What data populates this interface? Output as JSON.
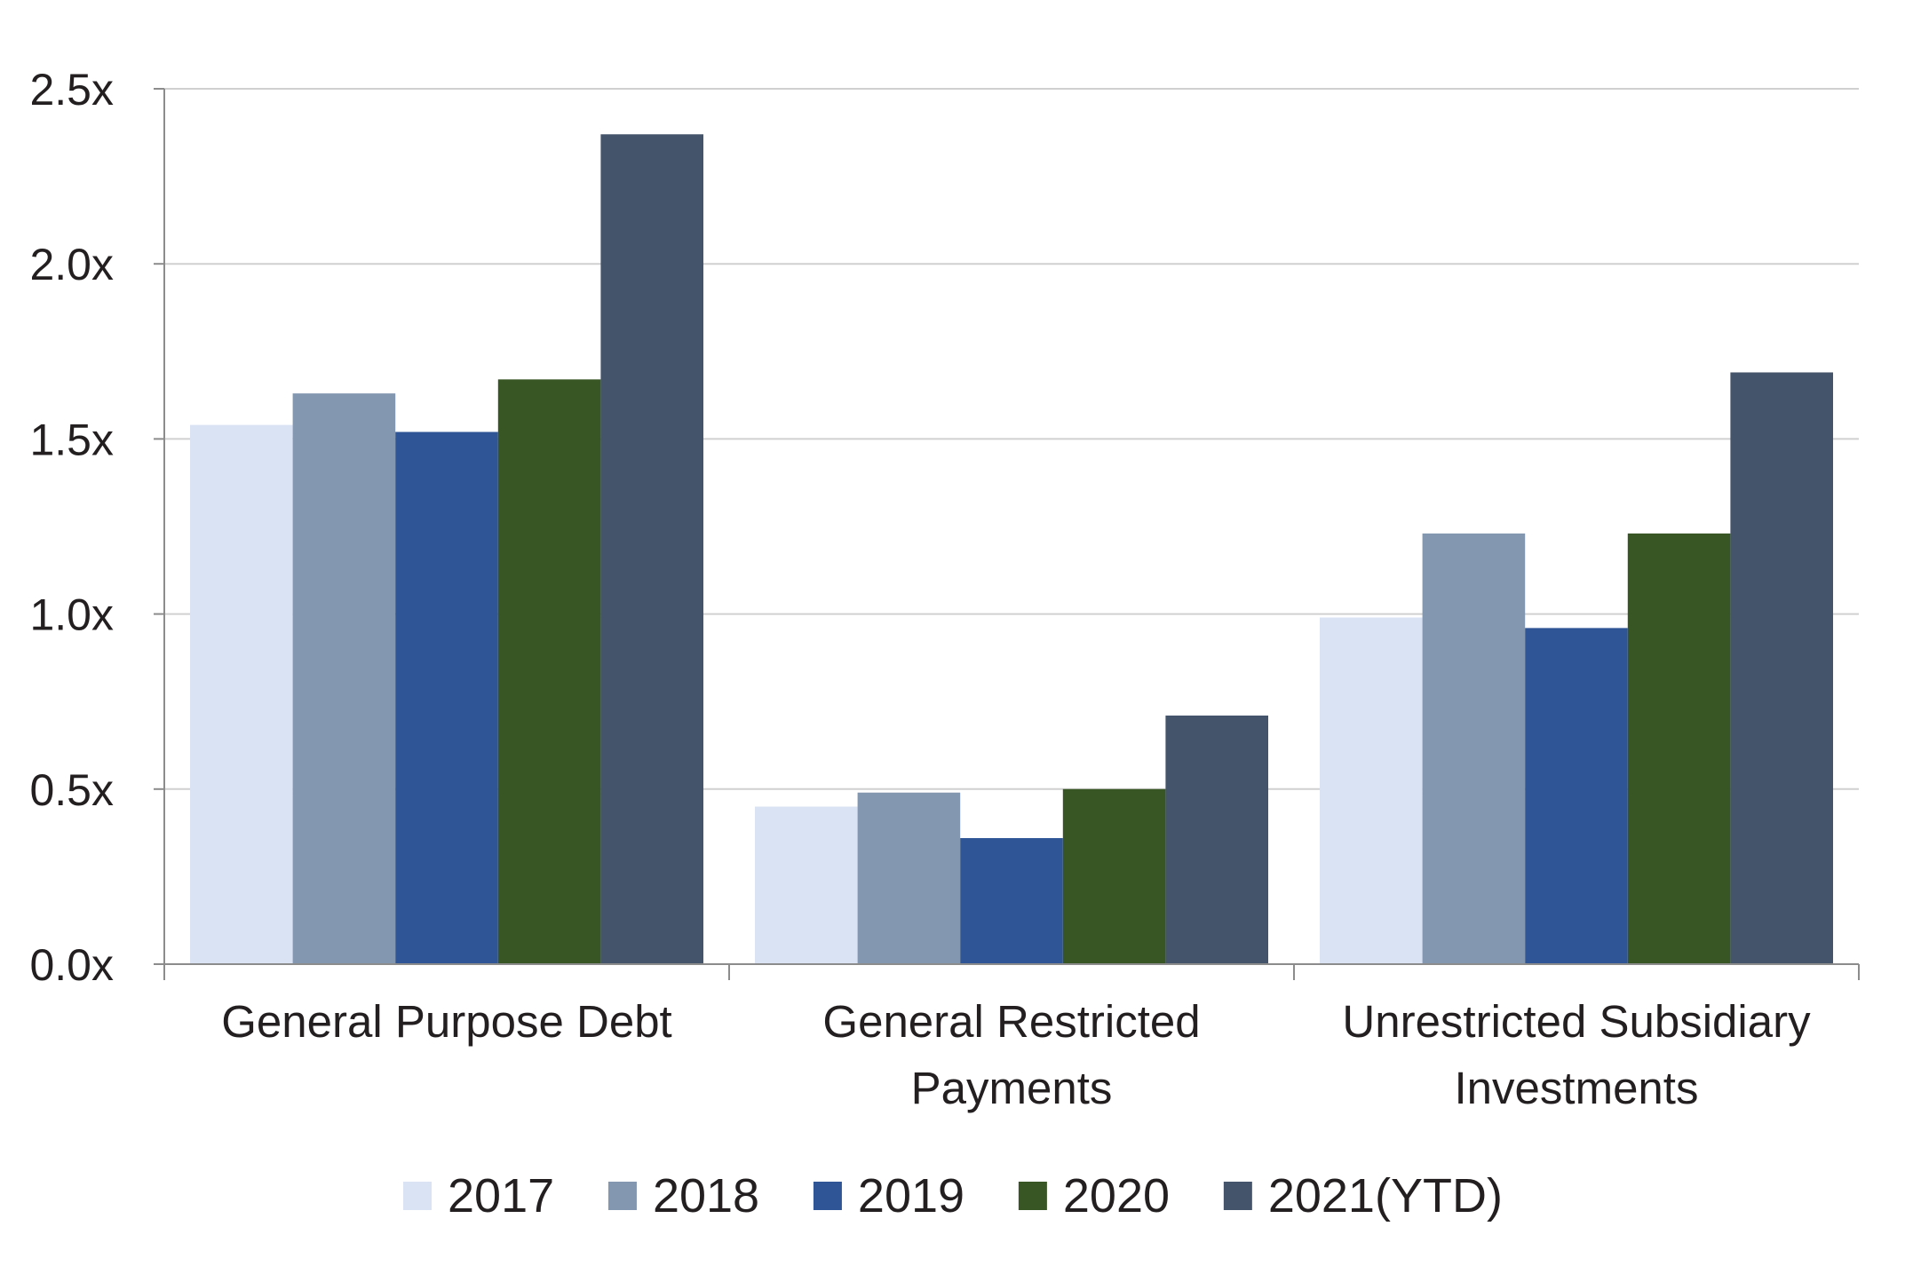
{
  "chart_data": {
    "type": "bar",
    "categories": [
      [
        "General Purpose Debt"
      ],
      [
        "General Restricted",
        "Payments"
      ],
      [
        "Unrestricted Subsidiary",
        "Investments"
      ]
    ],
    "series": [
      {
        "name": "2017",
        "color": "#dae3f3",
        "values": [
          1.54,
          0.45,
          0.99
        ]
      },
      {
        "name": "2018",
        "color": "#8497b0",
        "values": [
          1.63,
          0.49,
          1.23
        ]
      },
      {
        "name": "2019",
        "color": "#2f5597",
        "values": [
          1.52,
          0.36,
          0.96
        ]
      },
      {
        "name": "2020",
        "color": "#375623",
        "values": [
          1.67,
          0.5,
          1.23
        ]
      },
      {
        "name": "2021(YTD)",
        "color": "#44546a",
        "values": [
          2.37,
          0.71,
          1.69
        ]
      }
    ],
    "ylim": [
      0,
      2.5
    ],
    "yticks": [
      "0.0x",
      "0.5x",
      "1.0x",
      "1.5x",
      "2.0x",
      "2.5x"
    ],
    "grid": true,
    "legend_position": "bottom"
  }
}
